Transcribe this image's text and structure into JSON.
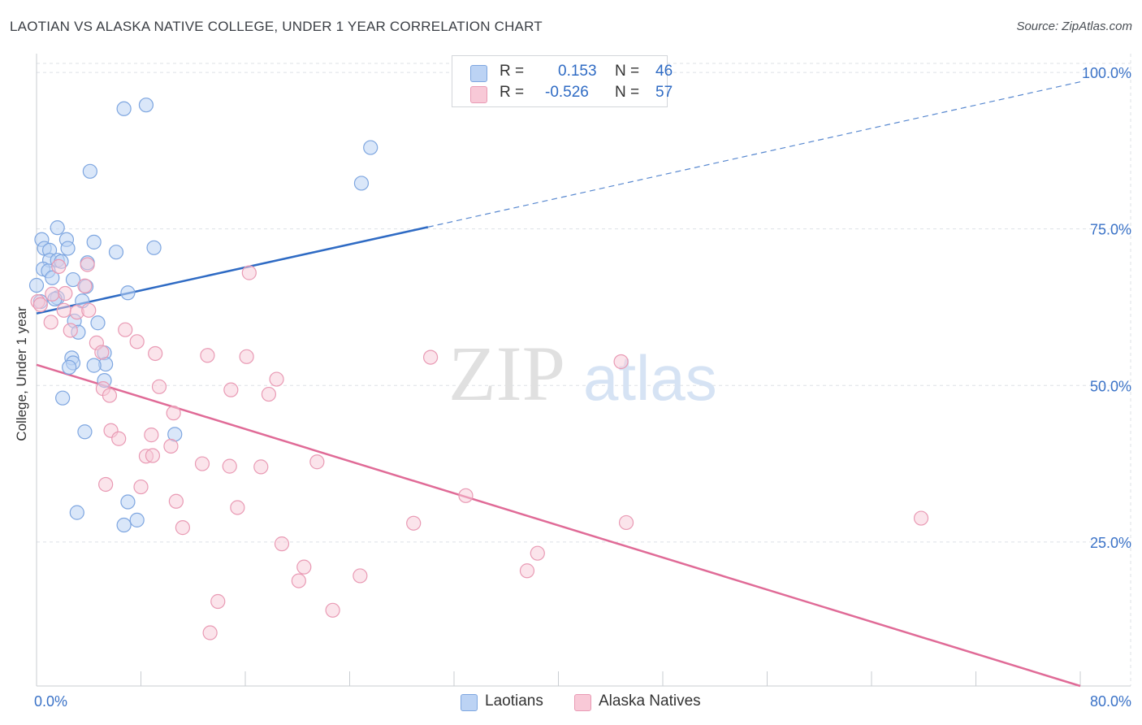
{
  "title": "LAOTIAN VS ALASKA NATIVE COLLEGE, UNDER 1 YEAR CORRELATION CHART",
  "source": "Source: ZipAtlas.com",
  "watermark": {
    "zip": "ZIP",
    "atlas": "atlas"
  },
  "colors": {
    "blue_fill": "#bcd3f4",
    "blue_stroke": "#7ea6e0",
    "blue_line": "#2f6bc4",
    "pink_fill": "#f8c9d7",
    "pink_stroke": "#e99ab4",
    "pink_line": "#e06b97",
    "axis_text": "#3a72c7",
    "grid": "#dde1e6"
  },
  "legend": {
    "r_label": "R =",
    "n_label": "N =",
    "rows": [
      {
        "r": "0.153",
        "n": "46"
      },
      {
        "r": "-0.526",
        "n": "57"
      }
    ]
  },
  "chart_data": {
    "type": "scatter",
    "title": "LAOTIAN VS ALASKA NATIVE COLLEGE, UNDER 1 YEAR CORRELATION CHART",
    "xlabel": "",
    "ylabel": "College, Under 1 year",
    "xlim": [
      0,
      80
    ],
    "ylim": [
      2,
      103
    ],
    "x_tick_labels": [
      {
        "value": 0,
        "label": "0.0%"
      },
      {
        "value": 80,
        "label": "80.0%"
      }
    ],
    "y_tick_labels": [
      {
        "value": 25,
        "label": "25.0%"
      },
      {
        "value": 50,
        "label": "50.0%"
      },
      {
        "value": 75,
        "label": "75.0%"
      },
      {
        "value": 100,
        "label": "100.0%"
      }
    ],
    "grid": true,
    "legend_position": "top-center",
    "series": [
      {
        "name": "Laotians",
        "R": 0.153,
        "N": 46,
        "trend": {
          "x0": 0,
          "y0": 61.5,
          "x_solid_end": 30,
          "y_solid_end": 75.3,
          "x1": 80,
          "y1": 98.5
        },
        "points": [
          [
            6.7,
            94.2
          ],
          [
            8.4,
            94.8
          ],
          [
            4.1,
            84.2
          ],
          [
            25.6,
            88.0
          ],
          [
            24.9,
            82.3
          ],
          [
            1.6,
            75.2
          ],
          [
            0.4,
            73.3
          ],
          [
            2.3,
            73.3
          ],
          [
            0.6,
            71.9
          ],
          [
            1.0,
            71.6
          ],
          [
            2.4,
            71.9
          ],
          [
            4.4,
            72.9
          ],
          [
            6.1,
            71.3
          ],
          [
            9.0,
            72.0
          ],
          [
            1.0,
            70.0
          ],
          [
            1.6,
            70.0
          ],
          [
            1.9,
            69.8
          ],
          [
            3.9,
            69.6
          ],
          [
            0.5,
            68.6
          ],
          [
            0.9,
            68.3
          ],
          [
            1.2,
            67.2
          ],
          [
            2.8,
            66.9
          ],
          [
            3.8,
            65.8
          ],
          [
            7.0,
            64.8
          ],
          [
            1.6,
            64.0
          ],
          [
            3.5,
            63.5
          ],
          [
            2.9,
            60.3
          ],
          [
            4.7,
            60.0
          ],
          [
            3.2,
            58.5
          ],
          [
            5.2,
            55.2
          ],
          [
            2.7,
            54.4
          ],
          [
            2.8,
            53.6
          ],
          [
            5.3,
            53.4
          ],
          [
            4.4,
            53.2
          ],
          [
            2.5,
            52.9
          ],
          [
            5.2,
            50.8
          ],
          [
            2.0,
            48.0
          ],
          [
            3.7,
            42.6
          ],
          [
            10.6,
            42.2
          ],
          [
            7.0,
            31.4
          ],
          [
            3.1,
            29.7
          ],
          [
            7.7,
            28.5
          ],
          [
            6.7,
            27.7
          ],
          [
            0.0,
            66.0
          ],
          [
            0.3,
            63.4
          ],
          [
            1.4,
            63.8
          ]
        ]
      },
      {
        "name": "Alaska Natives",
        "R": -0.526,
        "N": 57,
        "trend": {
          "x0": 0,
          "y0": 53.3,
          "x1": 80,
          "y1": 2.0
        },
        "points": [
          [
            0.1,
            63.4
          ],
          [
            0.3,
            62.9
          ],
          [
            1.2,
            64.6
          ],
          [
            1.7,
            69.0
          ],
          [
            2.2,
            64.7
          ],
          [
            3.7,
            65.9
          ],
          [
            3.9,
            69.3
          ],
          [
            2.1,
            62.0
          ],
          [
            3.1,
            61.7
          ],
          [
            1.1,
            60.1
          ],
          [
            2.6,
            58.8
          ],
          [
            4.0,
            62.0
          ],
          [
            6.8,
            58.9
          ],
          [
            4.6,
            56.8
          ],
          [
            7.7,
            57.0
          ],
          [
            5.0,
            55.3
          ],
          [
            9.1,
            55.1
          ],
          [
            13.1,
            54.8
          ],
          [
            16.1,
            54.6
          ],
          [
            30.2,
            54.5
          ],
          [
            44.8,
            53.8
          ],
          [
            18.4,
            51.0
          ],
          [
            5.1,
            49.5
          ],
          [
            9.4,
            49.8
          ],
          [
            14.9,
            49.3
          ],
          [
            17.8,
            48.6
          ],
          [
            5.6,
            48.4
          ],
          [
            10.5,
            45.6
          ],
          [
            5.7,
            42.8
          ],
          [
            8.8,
            42.1
          ],
          [
            6.3,
            41.5
          ],
          [
            10.3,
            40.3
          ],
          [
            8.4,
            38.7
          ],
          [
            8.9,
            38.8
          ],
          [
            12.7,
            37.5
          ],
          [
            14.8,
            37.1
          ],
          [
            17.2,
            37.0
          ],
          [
            21.5,
            37.8
          ],
          [
            5.3,
            34.2
          ],
          [
            8.0,
            33.8
          ],
          [
            10.7,
            31.5
          ],
          [
            15.4,
            30.5
          ],
          [
            32.9,
            32.4
          ],
          [
            28.9,
            28.0
          ],
          [
            45.2,
            28.1
          ],
          [
            67.8,
            28.8
          ],
          [
            11.2,
            27.3
          ],
          [
            18.8,
            24.7
          ],
          [
            38.4,
            23.2
          ],
          [
            37.6,
            20.4
          ],
          [
            20.5,
            21.0
          ],
          [
            24.8,
            19.6
          ],
          [
            20.1,
            18.8
          ],
          [
            13.9,
            15.5
          ],
          [
            22.7,
            14.1
          ],
          [
            13.3,
            10.5
          ],
          [
            16.3,
            68.0
          ]
        ]
      }
    ]
  },
  "bottom_legend": [
    {
      "label": "Laotians"
    },
    {
      "label": "Alaska Natives"
    }
  ]
}
